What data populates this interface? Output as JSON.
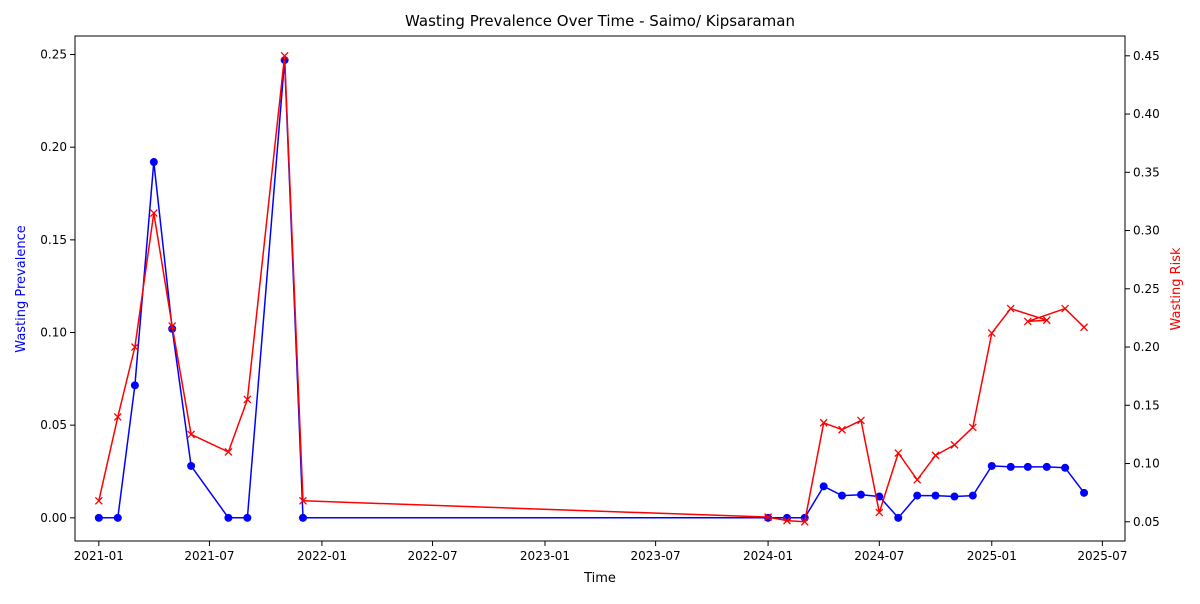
{
  "chart_data": {
    "type": "line",
    "title": "Wasting Prevalence Over Time - Saimo/ Kipsaraman",
    "xlabel": "Time",
    "ylabel_left": "Wasting Prevalence",
    "ylabel_right": "Wasting Risk",
    "x_ticks": [
      "2021-01",
      "2021-07",
      "2022-01",
      "2022-07",
      "2023-01",
      "2023-07",
      "2024-01",
      "2024-07",
      "2025-01",
      "2025-07"
    ],
    "y_left_ticks": [
      "0.00",
      "0.05",
      "0.10",
      "0.15",
      "0.20",
      "0.25"
    ],
    "y_right_ticks": [
      "0.05",
      "0.10",
      "0.15",
      "0.20",
      "0.25",
      "0.30",
      "0.35",
      "0.40",
      "0.45"
    ],
    "ylim_left": [
      -0.0125,
      0.26
    ],
    "ylim_right": [
      0.0335,
      0.467
    ],
    "xlim": [
      "2020-11-23",
      "2025-08-07"
    ],
    "grid": false,
    "colors": {
      "prevalence": "#0000ff",
      "risk": "#ff0000",
      "axis": "#000000"
    },
    "series": [
      {
        "axis": "left",
        "marker": "circle",
        "color": "#0000ff",
        "x": [
          "2021-01-01",
          "2021-02-01",
          "2021-03-01",
          "2021-04-01",
          "2021-05-01",
          "2021-06-01",
          "2021-08-01",
          "2021-09-01",
          "2021-11-01",
          "2021-12-01",
          "2024-01-01",
          "2024-02-01",
          "2024-03-01",
          "2024-04-01",
          "2024-05-01",
          "2024-06-01",
          "2024-07-01",
          "2024-08-01",
          "2024-09-01",
          "2024-10-01",
          "2024-11-01",
          "2024-12-01",
          "2025-01-01",
          "2025-02-01",
          "2025-03-01",
          "2025-04-01",
          "2025-05-01",
          "2025-06-01"
        ],
        "y": [
          0.0,
          0.0,
          0.0715,
          0.192,
          0.102,
          0.028,
          0.0,
          0.0,
          0.247,
          0.0,
          0.0,
          0.0,
          0.0,
          0.017,
          0.012,
          0.0125,
          0.0115,
          0.0,
          0.012,
          0.012,
          0.0115,
          0.012,
          0.028,
          0.0275,
          0.0275,
          0.0275,
          0.027,
          0.0135
        ]
      },
      {
        "axis": "right",
        "marker": "x",
        "color": "#ff0000",
        "x": [
          "2021-01-01",
          "2021-02-01",
          "2021-03-01",
          "2021-04-01",
          "2021-05-01",
          "2021-06-01",
          "2021-08-01",
          "2021-09-01",
          "2021-11-01",
          "2021-12-01",
          "2024-01-01",
          "2024-02-01",
          "2024-03-01",
          "2024-04-01",
          "2024-05-01",
          "2024-06-01",
          "2024-07-01",
          "2024-08-01",
          "2024-09-01",
          "2024-10-01",
          "2024-11-01",
          "2024-12-01",
          "2025-01-01",
          "2025-02-01",
          "2025-04-01",
          "2025-03-01",
          "2025-05-01",
          "2025-06-01"
        ],
        "y": [
          0.068,
          0.14,
          0.2,
          0.315,
          0.218,
          0.125,
          0.11,
          0.155,
          0.45,
          0.068,
          0.054,
          0.051,
          0.05,
          0.135,
          0.129,
          0.137,
          0.058,
          0.109,
          0.086,
          0.107,
          0.116,
          0.131,
          0.212,
          0.233,
          0.223,
          0.222,
          0.233,
          0.217
        ]
      }
    ]
  }
}
